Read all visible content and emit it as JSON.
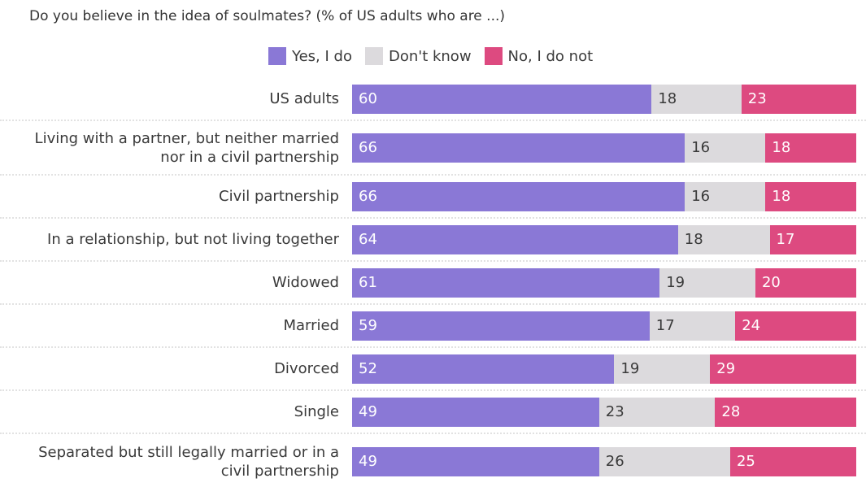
{
  "chart_data": {
    "type": "bar",
    "orientation": "horizontal",
    "stacked": true,
    "title": "Do you believe in the idea of soulmates? (% of US adults who are ...)",
    "legend_position": "top",
    "series": [
      {
        "name": "Yes, I do",
        "color": "#8a78d6",
        "values": [
          60,
          66,
          66,
          64,
          61,
          59,
          52,
          49,
          49
        ]
      },
      {
        "name": "Don't know",
        "color": "#dcdadd",
        "values": [
          18,
          16,
          16,
          18,
          19,
          17,
          19,
          23,
          26
        ]
      },
      {
        "name": "No, I do not",
        "color": "#dd4a80",
        "values": [
          23,
          18,
          18,
          17,
          20,
          24,
          29,
          28,
          25
        ]
      }
    ],
    "categories": [
      [
        "US adults"
      ],
      [
        "Living with a partner, but neither married",
        "nor in a civil partnership"
      ],
      [
        "Civil partnership"
      ],
      [
        "In a relationship, but not living together"
      ],
      [
        "Widowed"
      ],
      [
        "Married"
      ],
      [
        "Divorced"
      ],
      [
        "Single"
      ],
      [
        "Separated but still legally married or in a",
        "civil partnership"
      ]
    ]
  }
}
